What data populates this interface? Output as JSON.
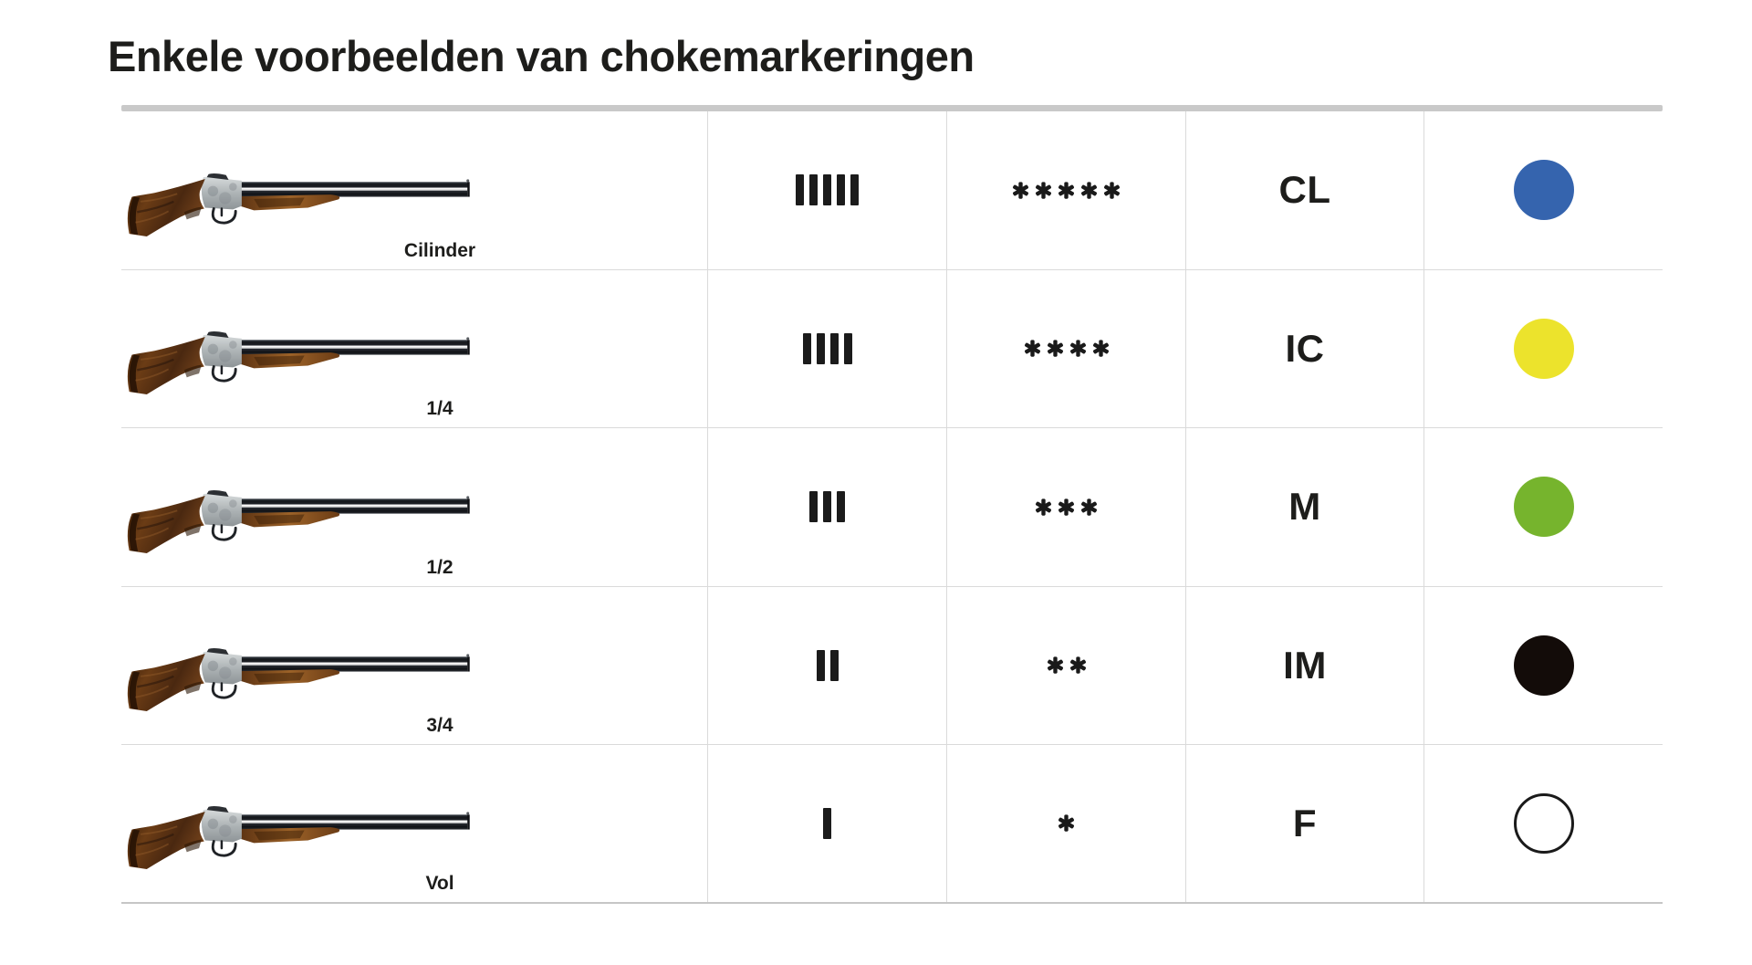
{
  "title": "Enkele voorbeelden van chokemarkeringen",
  "table": {
    "rows": [
      {
        "choke": "Cilinder",
        "notches": 5,
        "stars": 5,
        "code": "CL",
        "dot_color": "#3564ae",
        "dot_color_name": "blue",
        "dot_outline": false
      },
      {
        "choke": "1/4",
        "notches": 4,
        "stars": 4,
        "code": "IC",
        "dot_color": "#ece32c",
        "dot_color_name": "yellow",
        "dot_outline": false
      },
      {
        "choke": "1/2",
        "notches": 3,
        "stars": 3,
        "code": "M",
        "dot_color": "#76b42d",
        "dot_color_name": "green",
        "dot_outline": false
      },
      {
        "choke": "3/4",
        "notches": 2,
        "stars": 2,
        "code": "IM",
        "dot_color": "#130c09",
        "dot_color_name": "black",
        "dot_outline": false
      },
      {
        "choke": "Vol",
        "notches": 1,
        "stars": 1,
        "code": "F",
        "dot_color": "#ffffff",
        "dot_color_name": "white",
        "dot_outline": true
      }
    ]
  }
}
